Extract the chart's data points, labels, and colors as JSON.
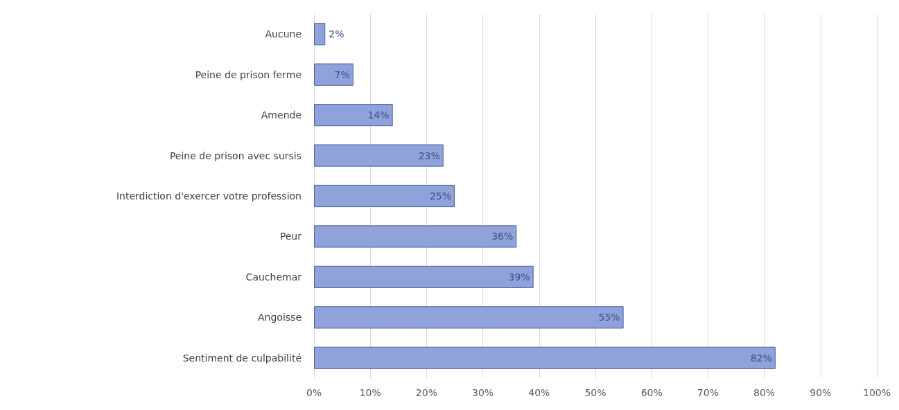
{
  "chart_data": {
    "type": "bar",
    "orientation": "horizontal",
    "categories": [
      "Aucune",
      "Peine de prison ferme",
      "Amende",
      "Peine de prison avec sursis",
      "Interdiction d'exercer votre profession",
      "Peur",
      "Cauchemar",
      "Angoisse",
      "Sentiment de culpabilité"
    ],
    "values": [
      2,
      7,
      14,
      23,
      25,
      36,
      39,
      55,
      82
    ],
    "value_labels": [
      "2%",
      "7%",
      "14%",
      "23%",
      "25%",
      "36%",
      "39%",
      "55%",
      "82%"
    ],
    "color": "#8fa2da",
    "xlim": [
      0,
      100
    ],
    "xticks": [
      {
        "value": 0,
        "label": "0%"
      },
      {
        "value": 10,
        "label": "10%"
      },
      {
        "value": 20,
        "label": "20%"
      },
      {
        "value": 30,
        "label": "30%"
      },
      {
        "value": 40,
        "label": "40%"
      },
      {
        "value": 50,
        "label": "50%"
      },
      {
        "value": 60,
        "label": "60%"
      },
      {
        "value": 70,
        "label": "70%"
      },
      {
        "value": 80,
        "label": "80%"
      },
      {
        "value": 90,
        "label": "90%"
      },
      {
        "value": 100,
        "label": "100%"
      }
    ],
    "grid": "x"
  }
}
